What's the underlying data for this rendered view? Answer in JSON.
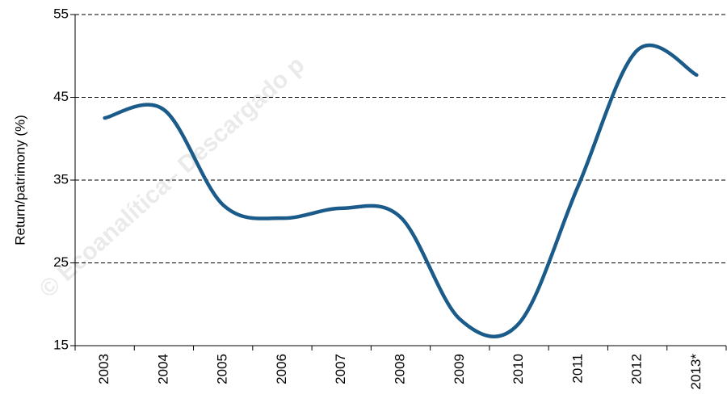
{
  "chart_data": {
    "type": "line",
    "y_label": "Return/patrimony (%)",
    "watermark": "© Ecoanalítica– Descargado p",
    "categories": [
      "2003",
      "2004",
      "2005",
      "2006",
      "2007",
      "2008",
      "2009",
      "2010",
      "2011",
      "2012",
      "2013*"
    ],
    "series": [
      {
        "name": "Return/patrimony",
        "color": "#1b5b8a",
        "values": [
          42.5,
          43.5,
          32,
          30.4,
          31.6,
          30.5,
          18.2,
          17.7,
          34.3,
          50.7,
          47.7
        ]
      }
    ],
    "ylim": [
      15,
      55
    ],
    "yticks": [
      15,
      25,
      35,
      45,
      55
    ],
    "grid": true
  }
}
